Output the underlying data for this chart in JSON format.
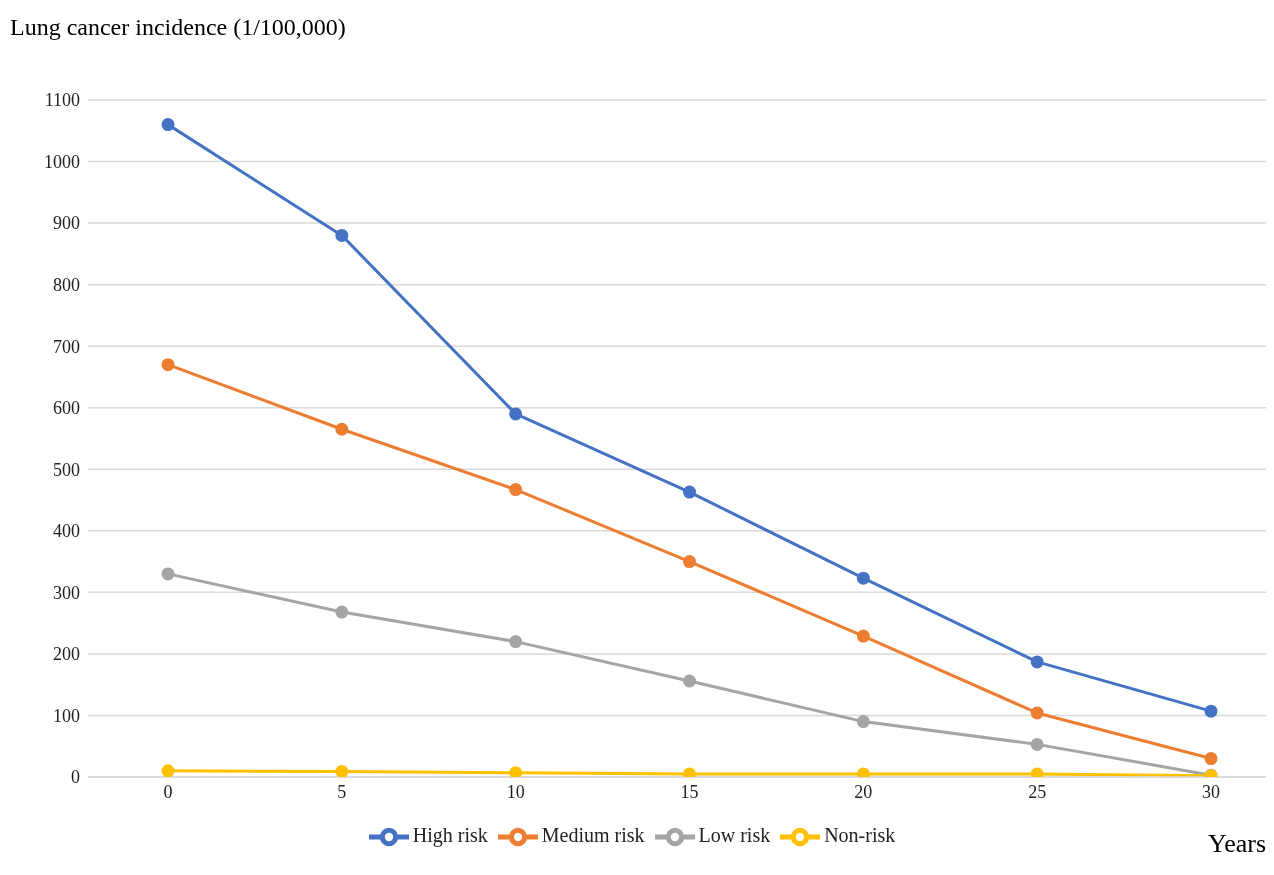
{
  "chart_data": {
    "type": "line",
    "ylabel": "Lung cancer incidence (1/100,000)",
    "xlabel": "Years",
    "categories": [
      "0",
      "5",
      "10",
      "15",
      "20",
      "25",
      "30"
    ],
    "series": [
      {
        "name": "High risk",
        "color": "#4472c4",
        "values": [
          1060,
          880,
          590,
          463,
          323,
          187,
          107
        ]
      },
      {
        "name": "Medium risk",
        "color": "#ed7d31",
        "values": [
          670,
          565,
          467,
          350,
          229,
          104,
          30
        ]
      },
      {
        "name": "Low risk",
        "color": "#a5a5a5",
        "values": [
          330,
          268,
          220,
          156,
          90,
          53,
          3
        ]
      },
      {
        "name": "Non-risk",
        "color": "#ffc000",
        "values": [
          10,
          9,
          7,
          5,
          5,
          5,
          2
        ]
      }
    ],
    "ylim": [
      0,
      1100
    ],
    "yticks": [
      0,
      100,
      200,
      300,
      400,
      500,
      600,
      700,
      800,
      900,
      1000,
      1100
    ],
    "grid": "y",
    "legend": "bottom",
    "marker": "circle",
    "line_style": "solid"
  }
}
